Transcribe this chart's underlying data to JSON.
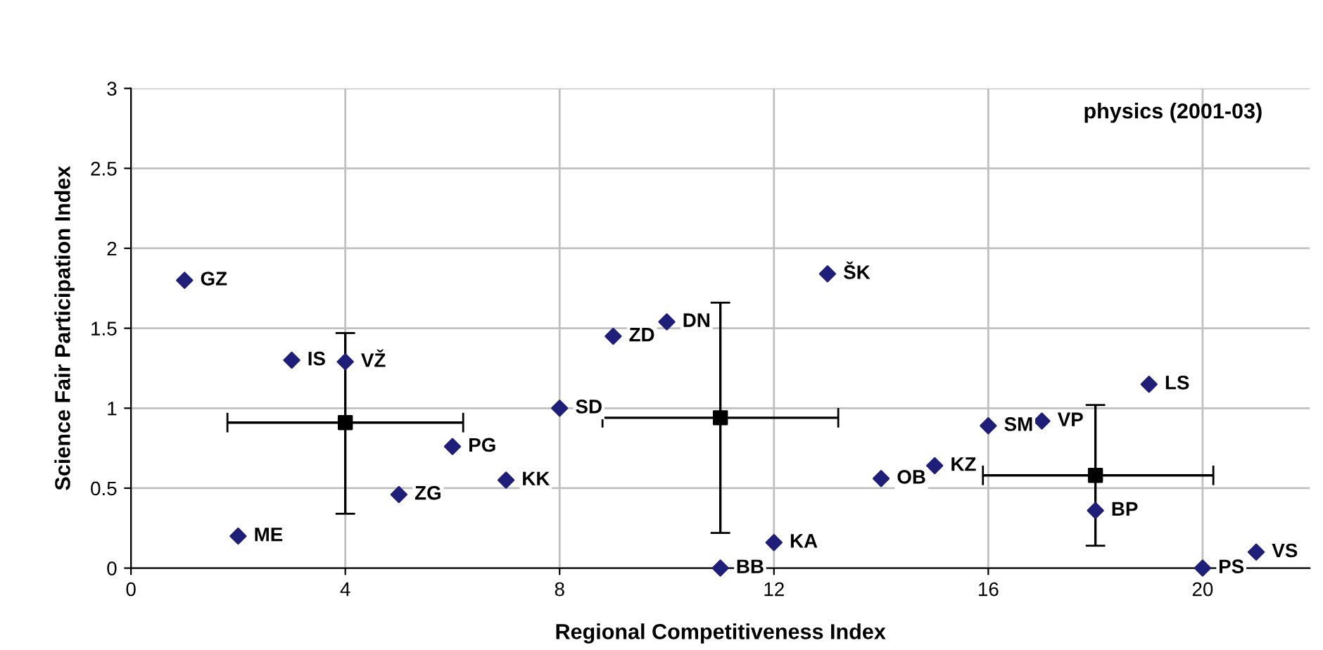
{
  "chart_data": {
    "type": "scatter",
    "title": "physics (2001-03)",
    "xlabel": "Regional Competitiveness Index",
    "ylabel": "Science Fair Participation Index",
    "series": [
      {
        "color": "#1f1f7a",
        "marker": "diamond",
        "x": [
          1,
          3,
          4,
          2,
          5,
          6,
          7,
          8,
          9,
          10,
          13,
          11,
          12,
          14,
          15,
          16,
          17,
          19,
          18,
          20,
          21
        ],
        "values": [
          1.8,
          1.3,
          1.29,
          0.2,
          0.46,
          0.76,
          0.55,
          1.0,
          1.45,
          1.54,
          1.84,
          0,
          0.16,
          0.56,
          0.64,
          0.89,
          0.92,
          1.15,
          0.36,
          0,
          0.1
        ]
      },
      {
        "color": "#000000",
        "marker": "square",
        "x": [
          4,
          11,
          18
        ],
        "values": [
          0.91,
          0.94,
          0.58
        ],
        "errors": [
          [
            0.34,
            1.47
          ],
          [
            0.22,
            1.66
          ],
          [
            0.14,
            1.02
          ]
        ],
        "xerrors": [
          [
            1.8,
            6.2
          ],
          [
            8.8,
            13.2
          ],
          [
            15.9,
            20.2
          ]
        ]
      }
    ],
    "annotations": [
      {
        "text": "GZ",
        "x": 1,
        "y": 1.8
      },
      {
        "text": "IS",
        "x": 3,
        "y": 1.3
      },
      {
        "text": "VŽ",
        "x": 4,
        "y": 1.29
      },
      {
        "text": "ME",
        "x": 2,
        "y": 0.2
      },
      {
        "text": "ZG",
        "x": 5,
        "y": 0.46
      },
      {
        "text": "PG",
        "x": 6,
        "y": 0.76
      },
      {
        "text": "KK",
        "x": 7,
        "y": 0.55
      },
      {
        "text": "SD",
        "x": 8,
        "y": 1.0
      },
      {
        "text": "ZD",
        "x": 9,
        "y": 1.45
      },
      {
        "text": "DN",
        "x": 10,
        "y": 1.54
      },
      {
        "text": "ŠK",
        "x": 13,
        "y": 1.84
      },
      {
        "text": "BB",
        "x": 11,
        "y": 0
      },
      {
        "text": "KA",
        "x": 12,
        "y": 0.16
      },
      {
        "text": "OB",
        "x": 14,
        "y": 0.56
      },
      {
        "text": "KZ",
        "x": 15,
        "y": 0.64
      },
      {
        "text": "SM",
        "x": 16,
        "y": 0.89
      },
      {
        "text": "VP",
        "x": 17,
        "y": 0.92
      },
      {
        "text": "LS",
        "x": 19,
        "y": 1.15
      },
      {
        "text": "BP",
        "x": 18,
        "y": 0.36
      },
      {
        "text": "PS",
        "x": 20,
        "y": 0
      },
      {
        "text": "VS",
        "x": 21,
        "y": 0.1
      }
    ],
    "xlim": [
      0,
      22
    ],
    "xticks": [
      0,
      4,
      8,
      12,
      16,
      20
    ],
    "ylim": [
      0,
      3
    ],
    "yticks": [
      0,
      0.5,
      1,
      1.5,
      2,
      2.5,
      3
    ],
    "grid": true,
    "legend": false
  }
}
